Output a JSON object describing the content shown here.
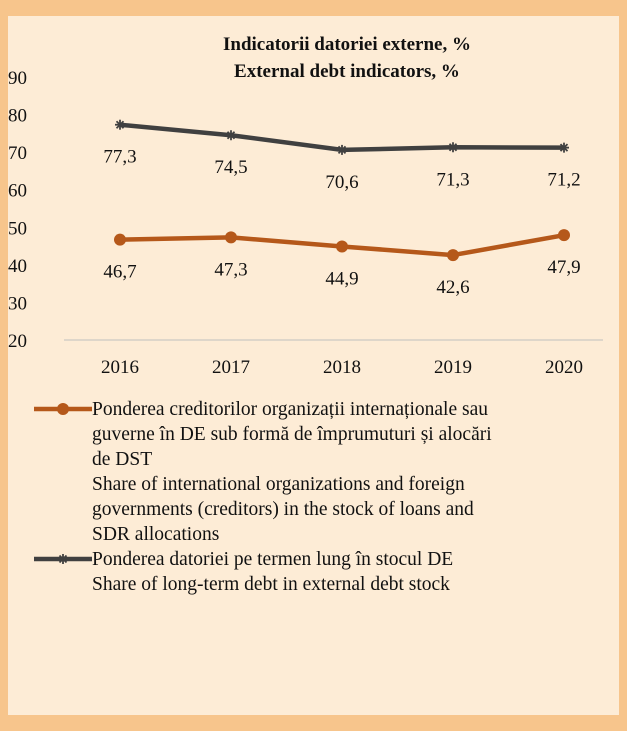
{
  "chart_data": {
    "type": "line",
    "title_line1": "Indicatorii datoriei externe, %",
    "title_line2": "External debt indicators, %",
    "categories": [
      "2016",
      "2017",
      "2018",
      "2019",
      "2020"
    ],
    "ylim": [
      20,
      90
    ],
    "yticks": [
      "20",
      "30",
      "40",
      "50",
      "60",
      "70",
      "80",
      "90"
    ],
    "grid": false,
    "legend_position": "bottom",
    "series": [
      {
        "values": [
          46.7,
          47.3,
          44.9,
          42.6,
          47.9
        ],
        "labels": [
          "46,7",
          "47,3",
          "44,9",
          "42,6",
          "47,9"
        ],
        "color": "#b5581a",
        "marker": "circle",
        "legend_lines": [
          "Ponderea creditorilor organizații internaționale sau",
          "guverne în DE sub formă de împrumuturi și alocări",
          "de DST",
          "Share of international organizations and foreign",
          "governments (creditors) in the stock of loans and",
          "SDR allocations"
        ]
      },
      {
        "values": [
          77.3,
          74.5,
          70.6,
          71.3,
          71.2
        ],
        "labels": [
          "77,3",
          "74,5",
          "70,6",
          "71,3",
          "71,2"
        ],
        "color": "#404040",
        "marker": "star",
        "legend_lines": [
          "Ponderea datoriei pe termen lung în stocul DE",
          "Share of long-term debt in external debt stock"
        ]
      }
    ]
  }
}
